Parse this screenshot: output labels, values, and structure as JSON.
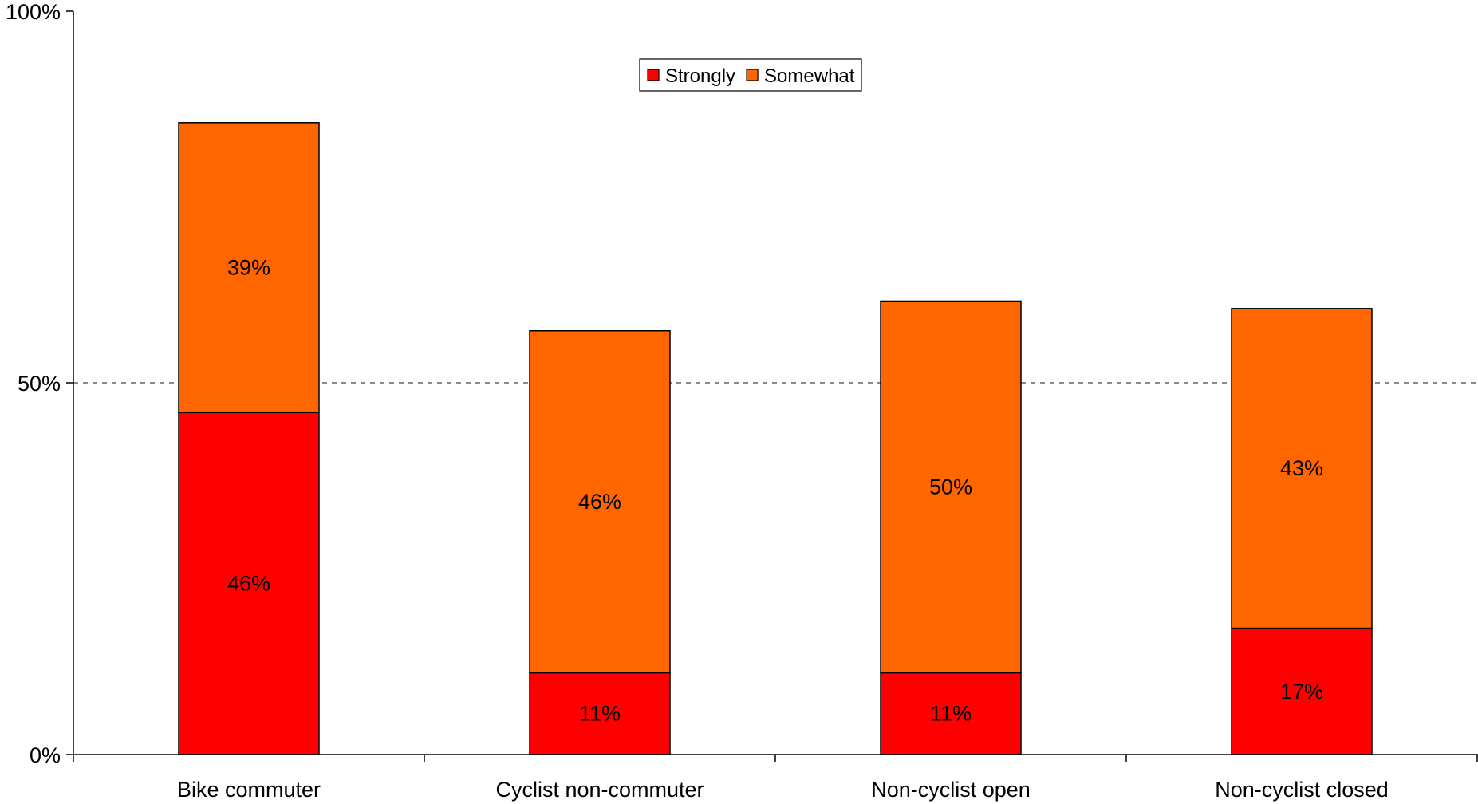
{
  "chart_data": {
    "type": "bar",
    "stacked": true,
    "categories": [
      "Bike commuter",
      "Cyclist non-commuter",
      "Non-cyclist open",
      "Non-cyclist closed"
    ],
    "series": [
      {
        "name": "Strongly",
        "values": [
          46,
          11,
          11,
          17
        ],
        "labels": [
          "46%",
          "11%",
          "11%",
          "17%"
        ],
        "color": "#ff0000"
      },
      {
        "name": "Somewhat",
        "values": [
          39,
          46,
          50,
          43
        ],
        "labels": [
          "39%",
          "46%",
          "50%",
          "43%"
        ],
        "color": "#ff6600"
      }
    ],
    "ylim": [
      0,
      100
    ],
    "yticks": [
      0,
      50,
      100
    ],
    "ytick_labels": [
      "0%",
      "50%",
      "100%"
    ],
    "gridlines": [
      50
    ],
    "legend": {
      "position": "top-center"
    }
  }
}
